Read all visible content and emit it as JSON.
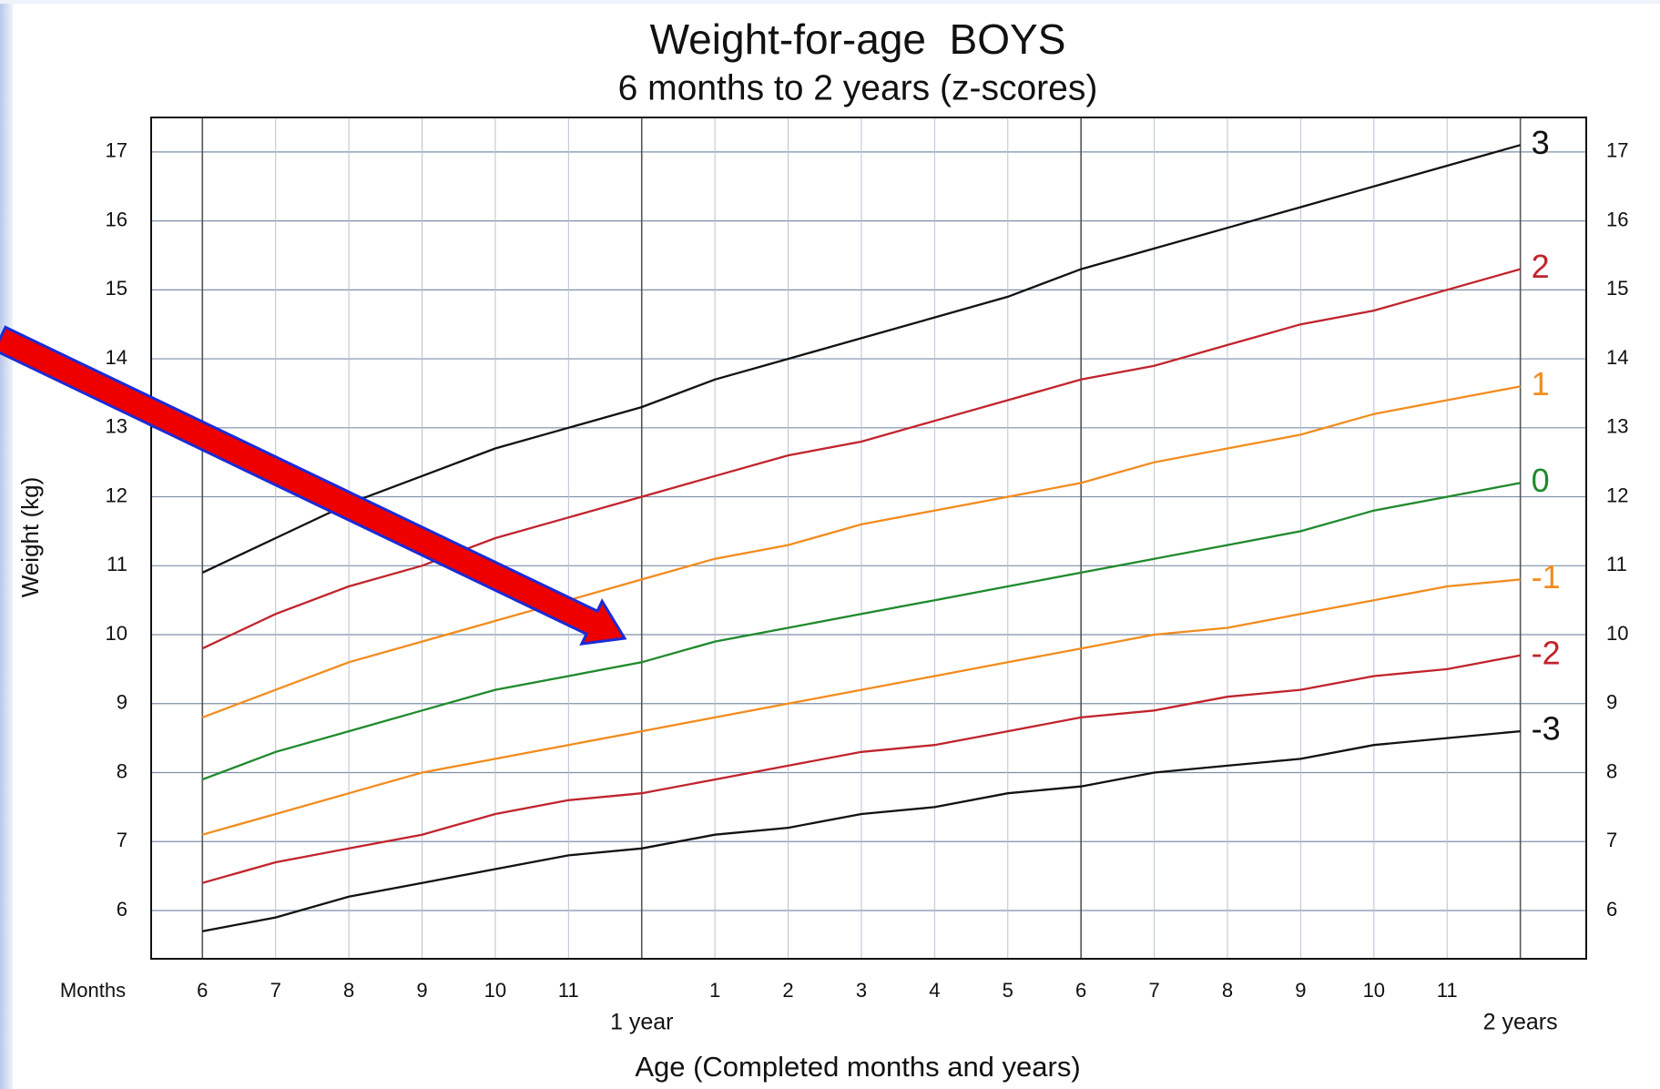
{
  "chart_data": {
    "type": "line",
    "title": "Weight-for-age  BOYS",
    "subtitle": "6 months to 2 years (z-scores)",
    "y_label": "Weight (kg)",
    "x_label": "Age (Completed months and years)",
    "x_unit_label": "Months",
    "x": [
      6,
      7,
      8,
      9,
      10,
      11,
      12,
      13,
      14,
      15,
      16,
      17,
      18,
      19,
      20,
      21,
      22,
      23,
      24
    ],
    "xlim": [
      5.3,
      24.9
    ],
    "xticks": [
      6,
      7,
      8,
      9,
      10,
      11,
      12,
      {
        "value": 13,
        "label": "1"
      },
      {
        "value": 14,
        "label": "2"
      },
      {
        "value": 15,
        "label": "3"
      },
      {
        "value": 16,
        "label": "4"
      },
      {
        "value": 17,
        "label": "5"
      },
      {
        "value": 18,
        "label": "6"
      },
      {
        "value": 19,
        "label": "7"
      },
      {
        "value": 20,
        "label": "8"
      },
      {
        "value": 21,
        "label": "9"
      },
      {
        "value": 22,
        "label": "10"
      },
      {
        "value": 23,
        "label": "11"
      },
      24
    ],
    "year_ticks": [
      {
        "value": 12,
        "label": "1 year"
      },
      {
        "value": 24,
        "label": "2 years"
      }
    ],
    "ylim": [
      5.3,
      17.5
    ],
    "yticks": [
      6,
      7,
      8,
      9,
      10,
      11,
      12,
      13,
      14,
      15,
      16,
      17
    ],
    "grid": true,
    "series": [
      {
        "name": "3",
        "color": "#111111",
        "values": [
          10.9,
          11.4,
          11.9,
          12.3,
          12.7,
          13.0,
          13.3,
          13.7,
          14.0,
          14.3,
          14.6,
          14.9,
          15.3,
          15.6,
          15.9,
          16.2,
          16.5,
          16.8,
          17.1
        ]
      },
      {
        "name": "2",
        "color": "#c0242c",
        "values": [
          9.8,
          10.3,
          10.7,
          11.0,
          11.4,
          11.7,
          12.0,
          12.3,
          12.6,
          12.8,
          13.1,
          13.4,
          13.7,
          13.9,
          14.2,
          14.5,
          14.7,
          15.0,
          15.3
        ]
      },
      {
        "name": "1",
        "color": "#f28c1e",
        "values": [
          8.8,
          9.2,
          9.6,
          9.9,
          10.2,
          10.5,
          10.8,
          11.1,
          11.3,
          11.6,
          11.8,
          12.0,
          12.2,
          12.5,
          12.7,
          12.9,
          13.2,
          13.4,
          13.6
        ]
      },
      {
        "name": "0",
        "color": "#1f8a2c",
        "values": [
          7.9,
          8.3,
          8.6,
          8.9,
          9.2,
          9.4,
          9.6,
          9.9,
          10.1,
          10.3,
          10.5,
          10.7,
          10.9,
          11.1,
          11.3,
          11.5,
          11.8,
          12.0,
          12.2
        ]
      },
      {
        "name": "-1",
        "color": "#f28c1e",
        "values": [
          7.1,
          7.4,
          7.7,
          8.0,
          8.2,
          8.4,
          8.6,
          8.8,
          9.0,
          9.2,
          9.4,
          9.6,
          9.8,
          10.0,
          10.1,
          10.3,
          10.5,
          10.7,
          10.8
        ]
      },
      {
        "name": "-2",
        "color": "#c0242c",
        "values": [
          6.4,
          6.7,
          6.9,
          7.1,
          7.4,
          7.6,
          7.7,
          7.9,
          8.1,
          8.3,
          8.4,
          8.6,
          8.8,
          8.9,
          9.1,
          9.2,
          9.4,
          9.5,
          9.7
        ]
      },
      {
        "name": "-3",
        "color": "#111111",
        "values": [
          5.7,
          5.9,
          6.2,
          6.4,
          6.6,
          6.8,
          6.9,
          7.1,
          7.2,
          7.4,
          7.5,
          7.7,
          7.8,
          8.0,
          8.1,
          8.2,
          8.4,
          8.5,
          8.6
        ]
      }
    ]
  }
}
